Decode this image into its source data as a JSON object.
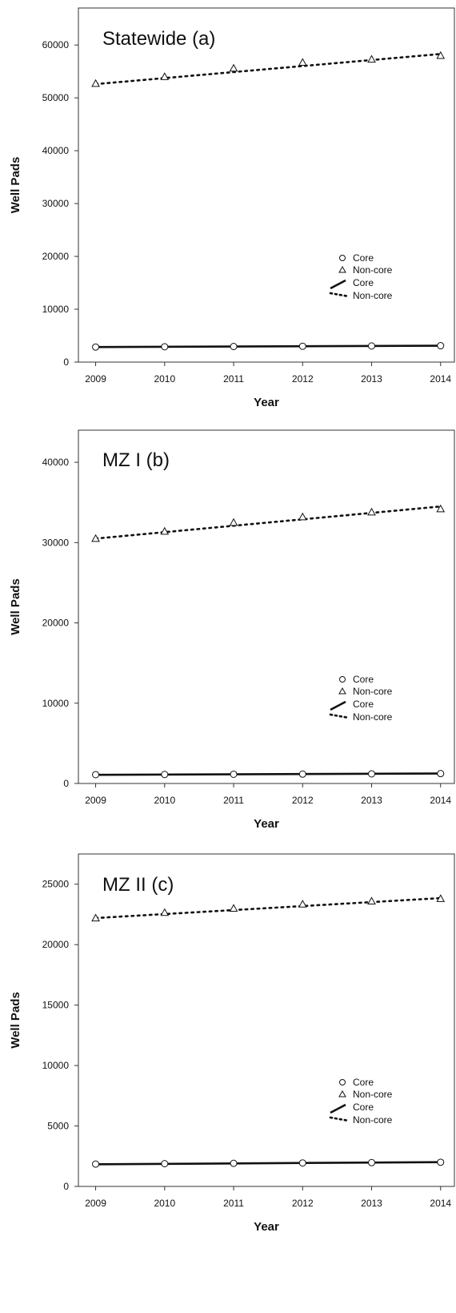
{
  "chart_data": [
    {
      "type": "line",
      "title": "Statewide (a)",
      "xlabel": "Year",
      "ylabel": "Well Pads",
      "x": [
        2009,
        2010,
        2011,
        2012,
        2013,
        2014
      ],
      "xticks": [
        "2009",
        "2010",
        "2011",
        "2012",
        "2013",
        "2014"
      ],
      "ylim": [
        0,
        67000
      ],
      "yticks": [
        "0",
        "10000",
        "20000",
        "30000",
        "40000",
        "50000",
        "60000"
      ],
      "yticks_values": [
        0,
        10000,
        20000,
        30000,
        40000,
        50000,
        60000
      ],
      "grid": false,
      "legend_position": "lower-right",
      "legend": [
        "Core",
        "Non-core",
        "Core",
        "Non-core"
      ],
      "series": [
        {
          "name": "Core",
          "marker": "circle",
          "values": [
            2850,
            2900,
            2950,
            3000,
            3050,
            3100
          ]
        },
        {
          "name": "Non-core",
          "marker": "triangle",
          "values": [
            52700,
            54000,
            55600,
            56700,
            57300,
            58000
          ]
        }
      ],
      "fits": [
        {
          "name": "Core",
          "style": "solid",
          "values": [
            2850,
            3100
          ]
        },
        {
          "name": "Non-core",
          "style": "dotted",
          "values": [
            52600,
            58300
          ]
        }
      ]
    },
    {
      "type": "line",
      "title": "MZ I (b)",
      "xlabel": "Year",
      "ylabel": "Well Pads",
      "x": [
        2009,
        2010,
        2011,
        2012,
        2013,
        2014
      ],
      "xticks": [
        "2009",
        "2010",
        "2011",
        "2012",
        "2013",
        "2014"
      ],
      "ylim": [
        0,
        44000
      ],
      "yticks": [
        "0",
        "10000",
        "20000",
        "30000",
        "40000"
      ],
      "yticks_values": [
        0,
        10000,
        20000,
        30000,
        40000
      ],
      "grid": false,
      "legend_position": "lower-right",
      "legend": [
        "Core",
        "Non-core",
        "Core",
        "Non-core"
      ],
      "series": [
        {
          "name": "Core",
          "marker": "circle",
          "values": [
            1100,
            1120,
            1150,
            1170,
            1200,
            1230
          ]
        },
        {
          "name": "Non-core",
          "marker": "triangle",
          "values": [
            30500,
            31400,
            32500,
            33200,
            33800,
            34200
          ]
        }
      ],
      "fits": [
        {
          "name": "Core",
          "style": "solid",
          "values": [
            1080,
            1240
          ]
        },
        {
          "name": "Non-core",
          "style": "dotted",
          "values": [
            30500,
            34500
          ]
        }
      ]
    },
    {
      "type": "line",
      "title": "MZ II (c)",
      "xlabel": "Year",
      "ylabel": "Well Pads",
      "x": [
        2009,
        2010,
        2011,
        2012,
        2013,
        2014
      ],
      "xticks": [
        "2009",
        "2010",
        "2011",
        "2012",
        "2013",
        "2014"
      ],
      "ylim": [
        0,
        27500
      ],
      "yticks": [
        "0",
        "5000",
        "10000",
        "15000",
        "20000",
        "25000"
      ],
      "yticks_values": [
        0,
        5000,
        10000,
        15000,
        20000,
        25000
      ],
      "grid": false,
      "legend_position": "lower-right",
      "legend": [
        "Core",
        "Non-core",
        "Core",
        "Non-core"
      ],
      "series": [
        {
          "name": "Core",
          "marker": "circle",
          "values": [
            1850,
            1880,
            1910,
            1940,
            1970,
            2000
          ]
        },
        {
          "name": "Non-core",
          "marker": "triangle",
          "values": [
            22200,
            22650,
            23000,
            23350,
            23600,
            23800
          ]
        }
      ],
      "fits": [
        {
          "name": "Core",
          "style": "solid",
          "values": [
            1830,
            2010
          ]
        },
        {
          "name": "Non-core",
          "style": "dotted",
          "values": [
            22200,
            23850
          ]
        }
      ]
    }
  ]
}
